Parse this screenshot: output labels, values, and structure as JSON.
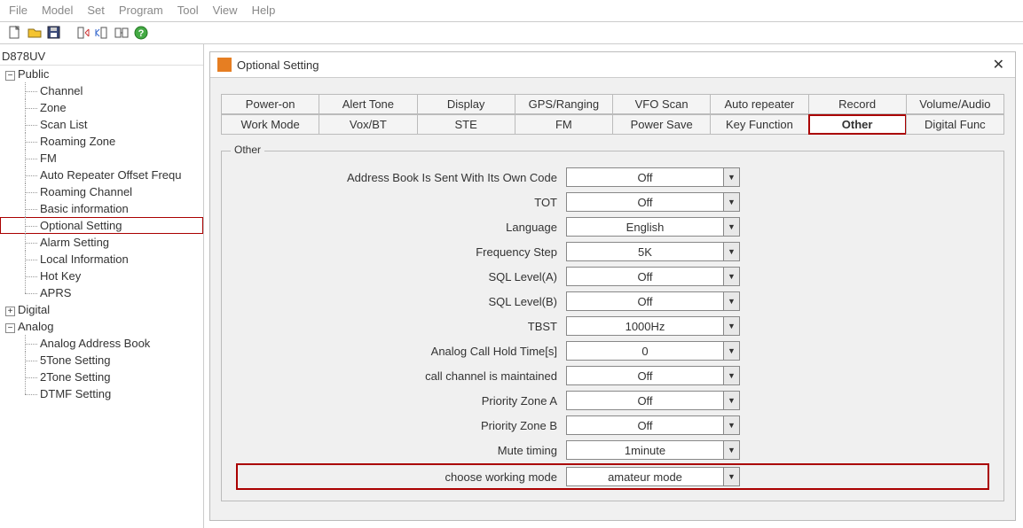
{
  "menu": {
    "items": [
      "File",
      "Model",
      "Set",
      "Program",
      "Tool",
      "View",
      "Help"
    ]
  },
  "toolbar_icons": [
    "new",
    "open",
    "save",
    "read",
    "write",
    "com",
    "help"
  ],
  "tree": {
    "root": "D878UV",
    "public": {
      "label": "Public",
      "expanded": true,
      "items": [
        "Channel",
        "Zone",
        "Scan List",
        "Roaming Zone",
        "FM",
        "Auto Repeater Offset Frequ",
        "Roaming Channel",
        "Basic information",
        "Optional Setting",
        "Alarm Setting",
        "Local Information",
        "Hot Key",
        "APRS"
      ],
      "selected_index": 8
    },
    "digital": {
      "label": "Digital",
      "expanded": false
    },
    "analog": {
      "label": "Analog",
      "expanded": true,
      "items": [
        "Analog Address Book",
        "5Tone Setting",
        "2Tone Setting",
        "DTMF Setting"
      ]
    }
  },
  "dialog": {
    "title": "Optional Setting",
    "tabs_row1": [
      "Power-on",
      "Alert Tone",
      "Display",
      "GPS/Ranging",
      "VFO Scan",
      "Auto repeater",
      "Record",
      "Volume/Audio"
    ],
    "tabs_row2": [
      "Work Mode",
      "Vox/BT",
      "STE",
      "FM",
      "Power Save",
      "Key Function",
      "Other",
      "Digital Func"
    ],
    "active_tab": "Other",
    "group_title": "Other",
    "fields": [
      {
        "label": "Address Book Is Sent With Its Own Code",
        "value": "Off"
      },
      {
        "label": "TOT",
        "value": "Off"
      },
      {
        "label": "Language",
        "value": "English"
      },
      {
        "label": "Frequency Step",
        "value": "5K"
      },
      {
        "label": "SQL Level(A)",
        "value": "Off"
      },
      {
        "label": "SQL Level(B)",
        "value": "Off"
      },
      {
        "label": "TBST",
        "value": "1000Hz"
      },
      {
        "label": "Analog Call Hold Time[s]",
        "value": "0"
      },
      {
        "label": "call channel is maintained",
        "value": "Off"
      },
      {
        "label": "Priority Zone A",
        "value": "Off"
      },
      {
        "label": "Priority Zone B",
        "value": "Off"
      },
      {
        "label": "Mute timing",
        "value": "1minute"
      },
      {
        "label": "choose working mode",
        "value": "amateur mode"
      }
    ],
    "highlight_index": 12
  },
  "colors": {
    "highlight_border": "#a00000",
    "panel_bg": "#f0f0f0",
    "border": "#bbbbbb"
  }
}
